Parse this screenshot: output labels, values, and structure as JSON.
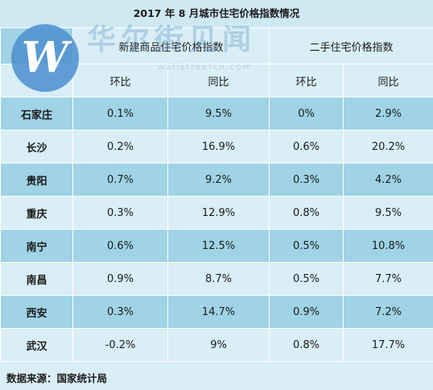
{
  "title": "2017 年 8 月城市住宅价格指数情况",
  "groups": {
    "new": "新建商品住宅价格指数",
    "used": "二手住宅价格指数"
  },
  "subheads": {
    "new_mom": "环比",
    "new_yoy": "同比",
    "used_mom": "环比",
    "used_yoy": "同比"
  },
  "rows": [
    {
      "city": "石家庄",
      "new_mom": "0.1%",
      "new_yoy": "9.5%",
      "used_mom": "0%",
      "used_yoy": "2.9%"
    },
    {
      "city": "长沙",
      "new_mom": "0.2%",
      "new_yoy": "16.9%",
      "used_mom": "0.6%",
      "used_yoy": "20.2%"
    },
    {
      "city": "贵阳",
      "new_mom": "0.7%",
      "new_yoy": "9.2%",
      "used_mom": "0.3%",
      "used_yoy": "4.2%"
    },
    {
      "city": "重庆",
      "new_mom": "0.3%",
      "new_yoy": "12.9%",
      "used_mom": "0.8%",
      "used_yoy": "9.5%"
    },
    {
      "city": "南宁",
      "new_mom": "0.6%",
      "new_yoy": "12.5%",
      "used_mom": "0.5%",
      "used_yoy": "10.8%"
    },
    {
      "city": "南昌",
      "new_mom": "0.9%",
      "new_yoy": "8.7%",
      "used_mom": "0.5%",
      "used_yoy": "7.7%"
    },
    {
      "city": "西安",
      "new_mom": "0.3%",
      "new_yoy": "14.7%",
      "used_mom": "0.9%",
      "used_yoy": "7.2%"
    },
    {
      "city": "武汉",
      "new_mom": "-0.2%",
      "new_yoy": "9%",
      "used_mom": "0.8%",
      "used_yoy": "17.7%"
    }
  ],
  "footer": "数据来源：国家统计局",
  "watermark": {
    "letter": "W",
    "text_cn": "华尔街见闻",
    "url": "wallstreetcn.com"
  },
  "colors": {
    "dark_row": "#9fd3e5",
    "light_row": "#d9eef6",
    "logo": "#4a8ed0"
  }
}
